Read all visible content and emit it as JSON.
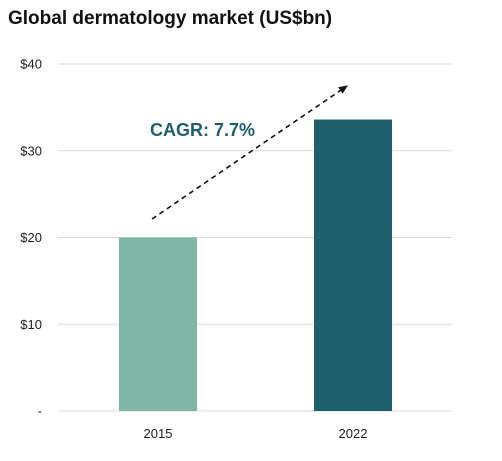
{
  "chart_data": {
    "type": "bar",
    "title": "Global dermatology market (US$bn)",
    "xlabel": "",
    "ylabel": "",
    "categories": [
      "2015",
      "2022"
    ],
    "values": [
      20,
      33.6
    ],
    "bar_colors": [
      "#7fb5a6",
      "#1d5f6a"
    ],
    "ylim": [
      0,
      40
    ],
    "yticks": [
      0,
      10,
      20,
      30,
      40
    ],
    "ytick_labels": [
      "-",
      "$10",
      "$20",
      "$30",
      "$40"
    ],
    "grid": true,
    "grid_color": "#d9d9d9",
    "annotation": {
      "text": "CAGR: 7.7%",
      "color": "#1d5f6a",
      "style": "dashed-arrow-up-right"
    }
  }
}
